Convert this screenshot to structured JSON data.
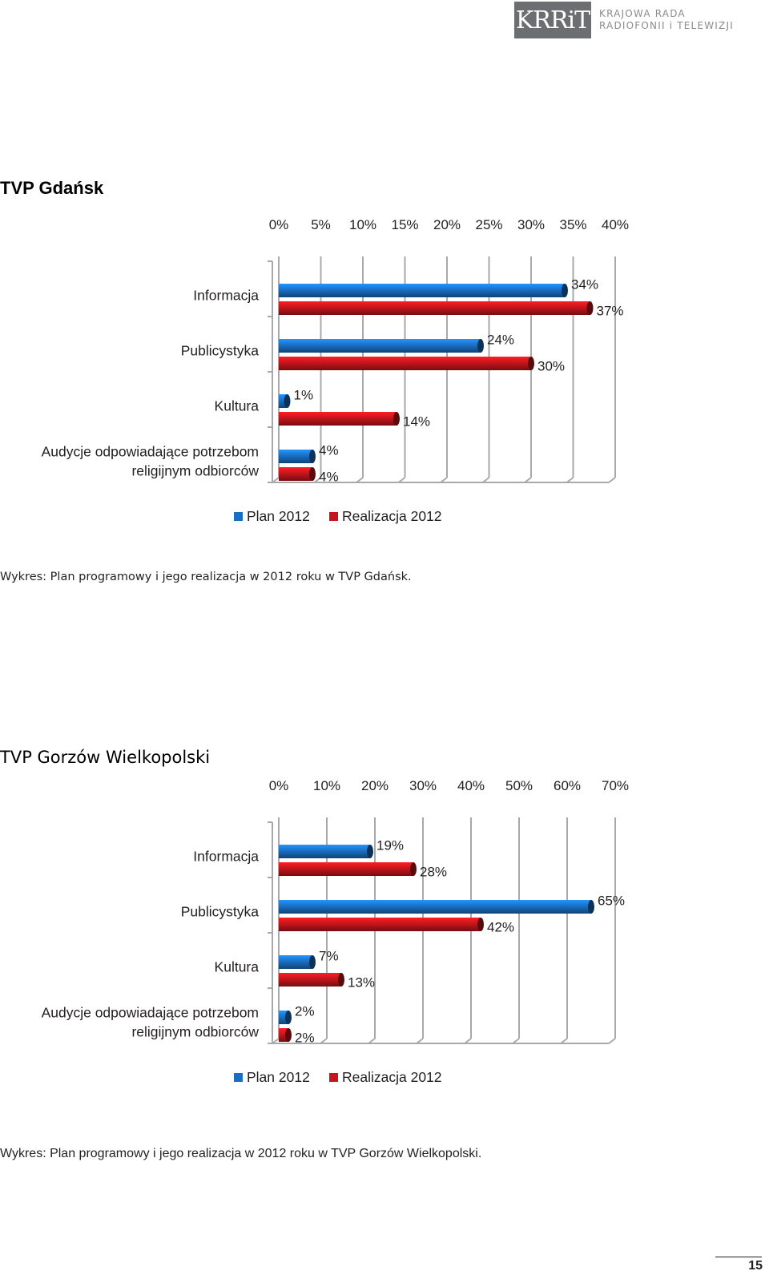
{
  "header": {
    "logo_mark": "KRRiT",
    "org_line1": "KRAJOWA RADA",
    "org_line2": "RADIOFONII i TELEWIZJI"
  },
  "section1": {
    "title": "TVP Gdańsk",
    "caption": "Wykres: Plan programowy i jego realizacja w 2012 roku w TVP Gdańsk."
  },
  "section2": {
    "title": "TVP Gorzów Wielkopolski",
    "caption": "Wykres: Plan programowy i jego realizacja w 2012 roku w TVP Gorzów Wielkopolski."
  },
  "page_number": "15",
  "colors": {
    "plan": "#1a6fc4",
    "realizacja": "#c4161c",
    "grid": "#a7a9ac"
  },
  "chart_data": [
    {
      "type": "bar",
      "orientation": "horizontal",
      "title": "TVP Gdańsk",
      "categories": [
        "Informacja",
        "Publicystyka",
        "Kultura",
        "Audycje odpowiadające potrzebom religijnym odbiorców"
      ],
      "category_lines": [
        [
          "Informacja"
        ],
        [
          "Publicystyka"
        ],
        [
          "Kultura"
        ],
        [
          "Audycje odpowiadające potrzebom",
          "religijnym odbiorców"
        ]
      ],
      "series": [
        {
          "name": "Plan 2012",
          "values": [
            34,
            24,
            1,
            4
          ]
        },
        {
          "name": "Realizacja 2012",
          "values": [
            37,
            30,
            14,
            4
          ]
        }
      ],
      "ticks": [
        "0%",
        "5%",
        "10%",
        "15%",
        "20%",
        "25%",
        "30%",
        "35%",
        "40%"
      ],
      "xlim": [
        0,
        40
      ],
      "axis_position": "top",
      "legend_position": "bottom",
      "grid": true
    },
    {
      "type": "bar",
      "orientation": "horizontal",
      "title": "TVP Gorzów Wielkopolski",
      "categories": [
        "Informacja",
        "Publicystyka",
        "Kultura",
        "Audycje odpowiadające potrzebom religijnym odbiorców"
      ],
      "category_lines": [
        [
          "Informacja"
        ],
        [
          "Publicystyka"
        ],
        [
          "Kultura"
        ],
        [
          "Audycje odpowiadające potrzebom",
          "religijnym odbiorców"
        ]
      ],
      "series": [
        {
          "name": "Plan 2012",
          "values": [
            19,
            65,
            7,
            2
          ]
        },
        {
          "name": "Realizacja 2012",
          "values": [
            28,
            42,
            13,
            2
          ]
        }
      ],
      "ticks": [
        "0%",
        "10%",
        "20%",
        "30%",
        "40%",
        "50%",
        "60%",
        "70%"
      ],
      "xlim": [
        0,
        70
      ],
      "axis_position": "top",
      "legend_position": "bottom",
      "grid": true
    }
  ]
}
